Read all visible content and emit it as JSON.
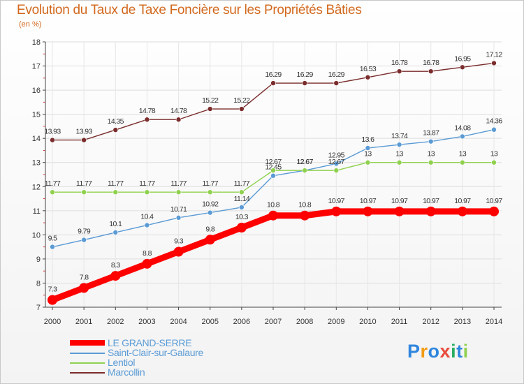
{
  "title": "Evolution du Taux de Taxe Foncière sur les Propriétés Bâties",
  "unit_label": "(en %)",
  "chart_data": {
    "type": "line",
    "title": "Evolution du Taux de Taxe Foncière sur les Propriétés Bâties",
    "ylabel": "(en %)",
    "xlabel": "",
    "ylim": [
      7,
      18
    ],
    "yticks": [
      "7",
      "8",
      "9",
      "10",
      "11",
      "12",
      "13",
      "14",
      "15",
      "16",
      "17",
      "18"
    ],
    "categories": [
      "2000",
      "2001",
      "2002",
      "2003",
      "2004",
      "2005",
      "2006",
      "2007",
      "2008",
      "2009",
      "2010",
      "2011",
      "2012",
      "2013",
      "2014"
    ],
    "series": [
      {
        "name": "LE GRAND-SERRE",
        "color": "#ff0000",
        "emphasis": true,
        "values": [
          7.3,
          7.8,
          8.3,
          8.8,
          9.3,
          9.8,
          10.3,
          10.8,
          10.8,
          10.97,
          10.97,
          10.97,
          10.97,
          10.97,
          10.97
        ],
        "labels": [
          "7.3",
          "7.8",
          "8.3",
          "8.8",
          "9.3",
          "9.8",
          "10.3",
          "10.8",
          "10.8",
          "10.97",
          "10.97",
          "10.97",
          "10.97",
          "10.97",
          "10.97"
        ]
      },
      {
        "name": "Saint-Clair-sur-Galaure",
        "color": "#5b9bd5",
        "emphasis": false,
        "values": [
          9.5,
          9.79,
          10.1,
          10.4,
          10.71,
          10.92,
          11.14,
          12.45,
          12.67,
          12.95,
          13.6,
          13.74,
          13.87,
          14.08,
          14.36
        ],
        "labels": [
          "9.5",
          "9.79",
          "10.1",
          "10.4",
          "10.71",
          "10.92",
          "11.14",
          "12.45",
          "12.67",
          "12.95",
          "13.6",
          "13.74",
          "13.87",
          "14.08",
          "14.36"
        ]
      },
      {
        "name": "Lentiol",
        "color": "#8fd14f",
        "emphasis": false,
        "values": [
          11.77,
          11.77,
          11.77,
          11.77,
          11.77,
          11.77,
          11.77,
          12.67,
          12.67,
          12.67,
          13,
          13,
          13,
          13,
          13
        ],
        "labels": [
          "11.77",
          "11.77",
          "11.77",
          "11.77",
          "11.77",
          "11.77",
          "11.77",
          "12.67",
          "12.67",
          "12.67",
          "13",
          "13",
          "13",
          "13",
          "13"
        ]
      },
      {
        "name": "Marcollin",
        "color": "#7b2c2c",
        "emphasis": false,
        "values": [
          13.93,
          13.93,
          14.35,
          14.78,
          14.78,
          15.22,
          15.22,
          16.29,
          16.29,
          16.29,
          16.53,
          16.78,
          16.78,
          16.95,
          17.12
        ],
        "labels": [
          "13.93",
          "13.93",
          "14.35",
          "14.78",
          "14.78",
          "15.22",
          "15.22",
          "16.29",
          "16.29",
          "16.29",
          "16.53",
          "16.78",
          "16.78",
          "16.95",
          "17.12"
        ]
      }
    ],
    "legend_position": "bottom-left"
  },
  "logo": {
    "text": "Proxiti",
    "letters": [
      "P",
      "r",
      "o",
      "x",
      "i",
      "t",
      "i"
    ],
    "colors": [
      "#2e86de",
      "#f39c12",
      "#2e86de",
      "#e74c3c",
      "#27ae60",
      "#2e86de",
      "#8fd14f"
    ]
  }
}
